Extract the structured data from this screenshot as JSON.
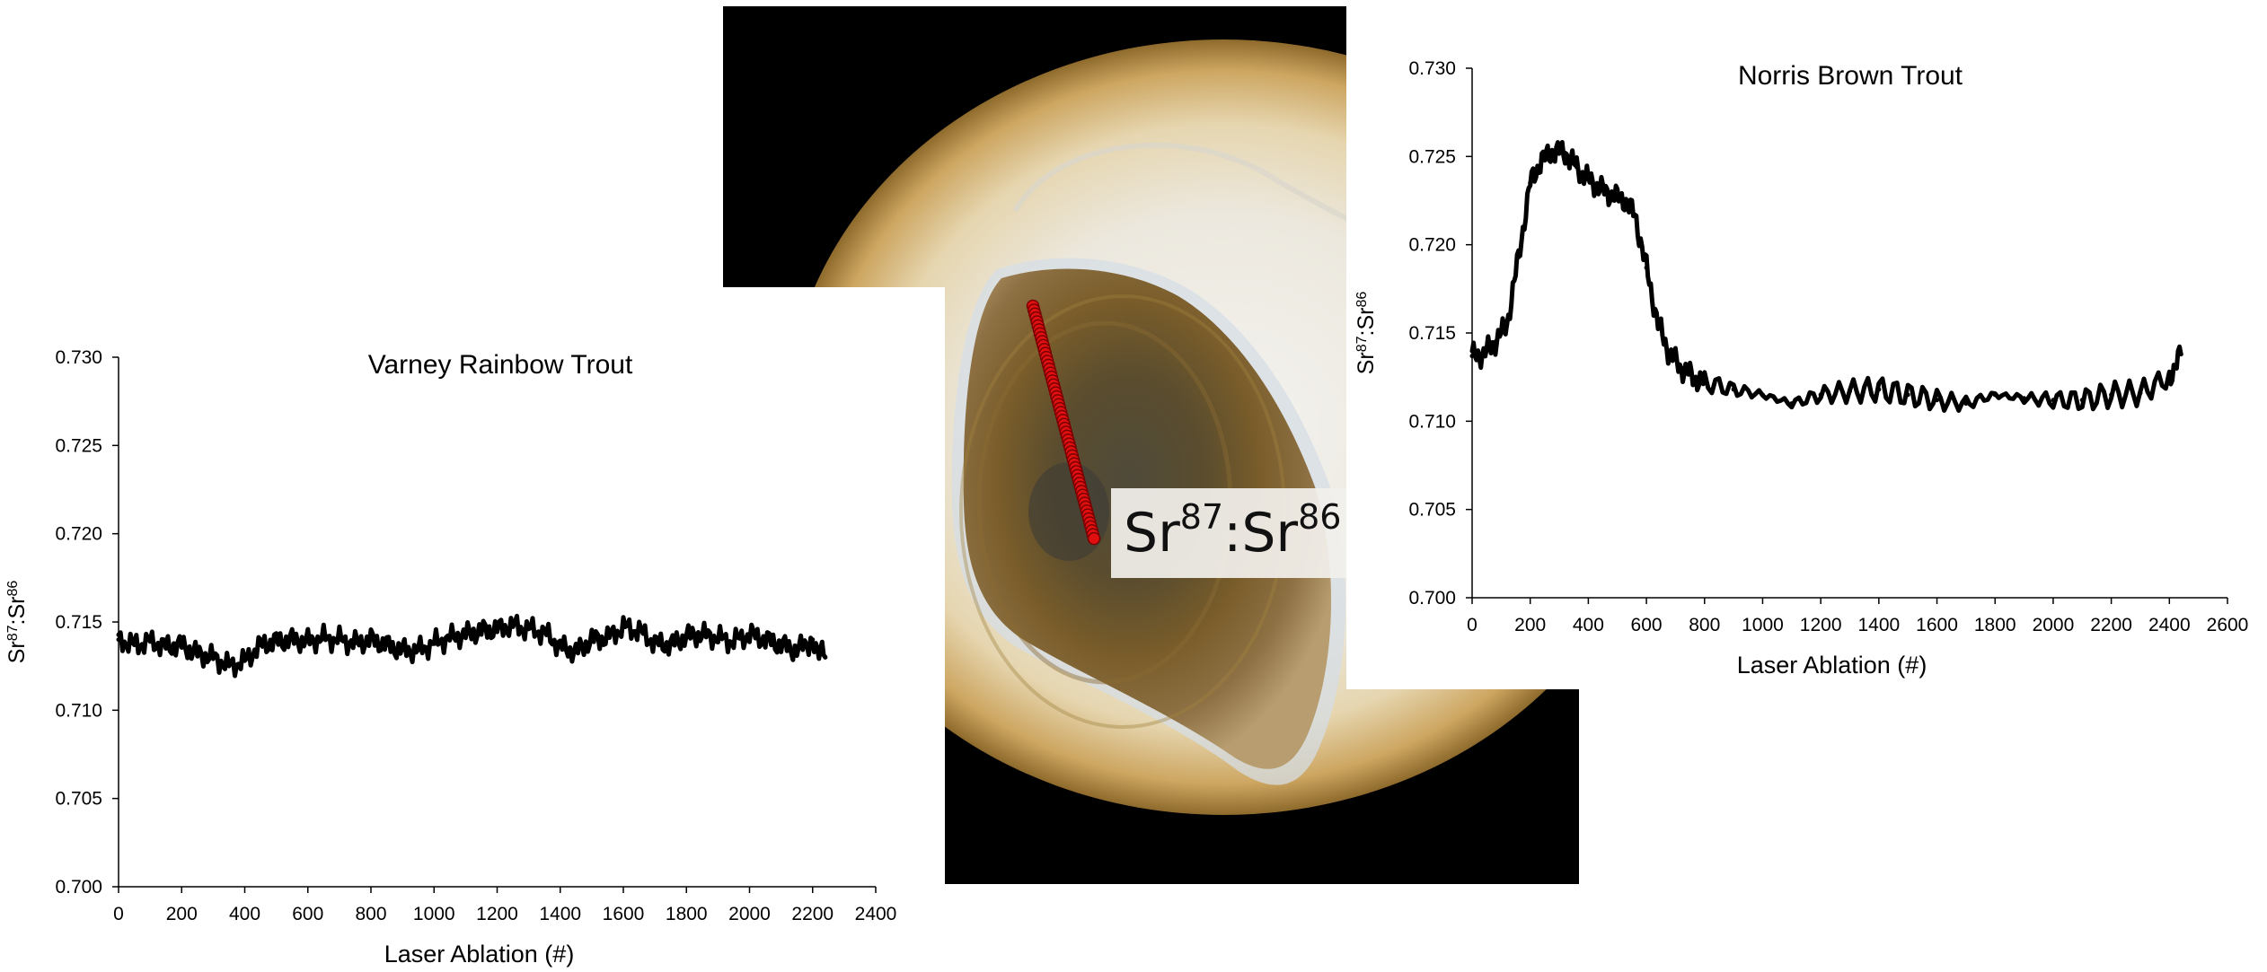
{
  "callout": {
    "element": "Sr",
    "sup_a": "87",
    "sep": ":",
    "sup_b": "86",
    "tail": " ="
  },
  "colors": {
    "line": "#000000",
    "transect": "#e01010",
    "transect_outline": "#7a0000",
    "photo_background": "#000000"
  },
  "chart_data": [
    {
      "type": "line",
      "title": "Varney Rainbow Trout",
      "xlabel": "Laser Ablation (#)",
      "ylabel_parts": [
        "Sr",
        "87",
        ":Sr",
        "86"
      ],
      "xlim": [
        0,
        2400
      ],
      "ylim": [
        0.7,
        0.73
      ],
      "xticks": [
        "0",
        "200",
        "400",
        "600",
        "800",
        "1000",
        "1200",
        "1400",
        "1600",
        "1800",
        "2000",
        "2200",
        "2400"
      ],
      "yticks": [
        "0.700",
        "0.705",
        "0.710",
        "0.715",
        "0.720",
        "0.725",
        "0.730"
      ],
      "grid": false,
      "series": [
        {
          "x": [
            0,
            50,
            100,
            150,
            200,
            250,
            300,
            350,
            400,
            450,
            500,
            550,
            600,
            650,
            700,
            750,
            800,
            850,
            900,
            950,
            1000,
            1050,
            1100,
            1150,
            1200,
            1250,
            1300,
            1350,
            1400,
            1450,
            1500,
            1550,
            1600,
            1650,
            1700,
            1750,
            1800,
            1850,
            1900,
            1950,
            2000,
            2050,
            2100,
            2150,
            2200,
            2240
          ],
          "y": [
            0.714,
            0.7137,
            0.7139,
            0.7136,
            0.7137,
            0.7132,
            0.713,
            0.7125,
            0.7128,
            0.7137,
            0.7139,
            0.714,
            0.7139,
            0.7141,
            0.714,
            0.7138,
            0.714,
            0.7137,
            0.7134,
            0.7134,
            0.7138,
            0.7141,
            0.7143,
            0.7145,
            0.7146,
            0.7148,
            0.7146,
            0.7144,
            0.7136,
            0.7133,
            0.714,
            0.7141,
            0.7147,
            0.7145,
            0.7138,
            0.7137,
            0.7142,
            0.7143,
            0.7141,
            0.7139,
            0.7143,
            0.714,
            0.7137,
            0.7134,
            0.714,
            0.713
          ]
        }
      ]
    },
    {
      "type": "line",
      "title": "Norris Brown Trout",
      "xlabel": "Laser Ablation (#)",
      "ylabel_parts": [
        "Sr",
        "87",
        ":Sr",
        "86"
      ],
      "xlim": [
        0,
        2600
      ],
      "ylim": [
        0.7,
        0.73
      ],
      "xticks": [
        "0",
        "200",
        "400",
        "600",
        "800",
        "1000",
        "1200",
        "1400",
        "1600",
        "1800",
        "2000",
        "2200",
        "2400",
        "2600"
      ],
      "yticks": [
        "0.700",
        "0.705",
        "0.710",
        "0.715",
        "0.720",
        "0.725",
        "0.730"
      ],
      "grid": false,
      "series": [
        {
          "x": [
            0,
            40,
            80,
            120,
            160,
            200,
            240,
            280,
            320,
            360,
            400,
            440,
            480,
            520,
            560,
            600,
            640,
            680,
            720,
            760,
            800,
            900,
            1000,
            1100,
            1200,
            1300,
            1400,
            1500,
            1600,
            1700,
            1800,
            1900,
            2000,
            2100,
            2200,
            2300,
            2400,
            2440
          ],
          "y": [
            0.7137,
            0.7138,
            0.7145,
            0.7155,
            0.7193,
            0.7235,
            0.7248,
            0.7253,
            0.7252,
            0.7244,
            0.7237,
            0.7232,
            0.7228,
            0.7226,
            0.7217,
            0.7187,
            0.7155,
            0.7138,
            0.713,
            0.7125,
            0.7122,
            0.7118,
            0.7115,
            0.711,
            0.7115,
            0.7117,
            0.7118,
            0.7115,
            0.7112,
            0.711,
            0.7115,
            0.7113,
            0.7112,
            0.7112,
            0.7115,
            0.7116,
            0.7125,
            0.7138
          ]
        }
      ]
    }
  ]
}
